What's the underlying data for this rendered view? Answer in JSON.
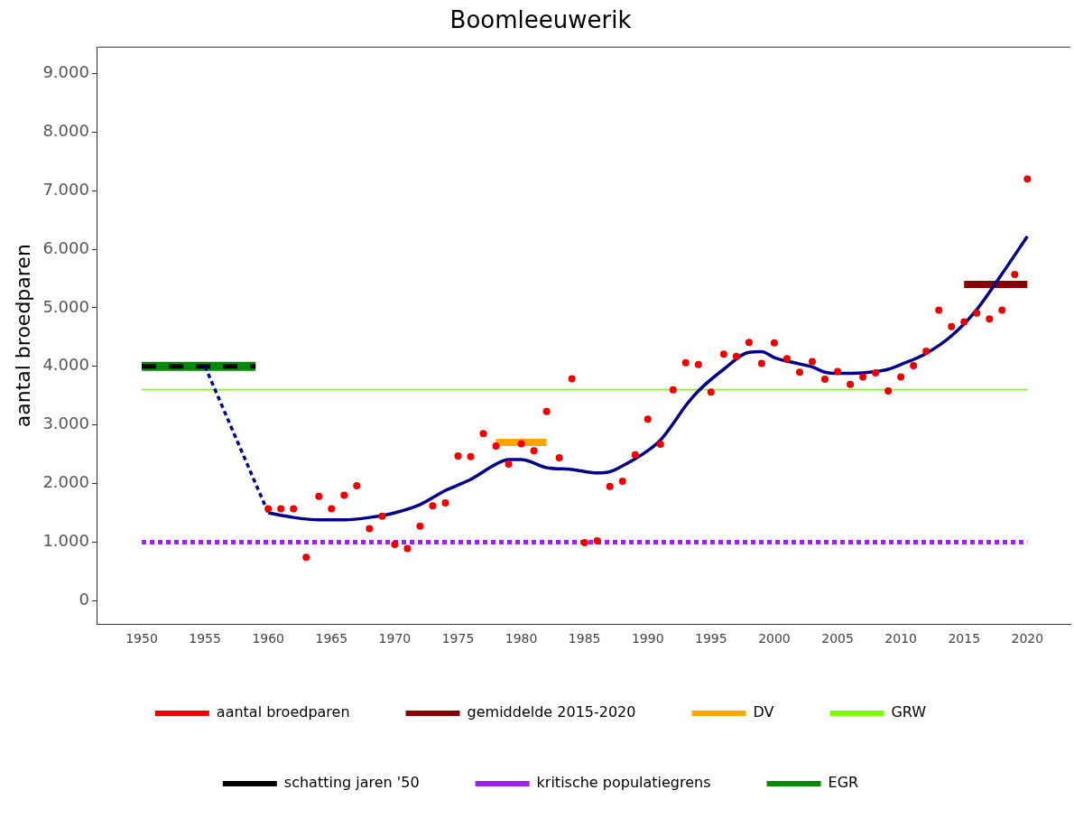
{
  "chart_data": {
    "type": "line",
    "title": "Boomleeuwerik",
    "ylabel": "aantal broedparen",
    "xlim": [
      1946.5,
      2023.4
    ],
    "ylim": [
      -400,
      9450
    ],
    "xticks": [
      1950,
      1955,
      1960,
      1965,
      1970,
      1975,
      1980,
      1985,
      1990,
      1995,
      2000,
      2005,
      2010,
      2015,
      2020
    ],
    "yticks": [
      {
        "value": 0,
        "label": "0"
      },
      {
        "value": 1000,
        "label": "1.000"
      },
      {
        "value": 2000,
        "label": "2.000"
      },
      {
        "value": 3000,
        "label": "3.000"
      },
      {
        "value": 4000,
        "label": "4.000"
      },
      {
        "value": 5000,
        "label": "5.000"
      },
      {
        "value": 6000,
        "label": "6.000"
      },
      {
        "value": 7000,
        "label": "7.000"
      },
      {
        "value": 8000,
        "label": "8.000"
      },
      {
        "value": 9000,
        "label": "9.000"
      }
    ],
    "grid": false,
    "legend": "bottom",
    "series": [
      {
        "type": "scatter",
        "name": "aantal broedparen",
        "color": "#ee0000",
        "marker": "circle",
        "x": [
          1960,
          1961,
          1962,
          1963,
          1964,
          1965,
          1966,
          1967,
          1968,
          1969,
          1970,
          1971,
          1972,
          1973,
          1974,
          1975,
          1976,
          1977,
          1978,
          1979,
          1980,
          1981,
          1982,
          1983,
          1984,
          1985,
          1986,
          1987,
          1988,
          1989,
          1990,
          1991,
          1992,
          1993,
          1994,
          1995,
          1996,
          1997,
          1998,
          1999,
          2000,
          2001,
          2002,
          2003,
          2004,
          2005,
          2006,
          2007,
          2008,
          2009,
          2010,
          2011,
          2012,
          2013,
          2014,
          2015,
          2016,
          2017,
          2018,
          2019,
          2020
        ],
        "values": [
          1570,
          1570,
          1570,
          740,
          1780,
          1570,
          1800,
          1960,
          1230,
          1440,
          960,
          890,
          1270,
          1620,
          1670,
          2470,
          2460,
          2850,
          2640,
          2330,
          2680,
          2560,
          3230,
          2440,
          3790,
          990,
          1020,
          1950,
          2040,
          2490,
          3100,
          2670,
          3600,
          4060,
          4030,
          3560,
          4210,
          4170,
          4410,
          4050,
          4400,
          4130,
          3900,
          4080,
          3780,
          3910,
          3690,
          3820,
          3890,
          3580,
          3820,
          4010,
          4260,
          4960,
          4680,
          4760,
          4910,
          4810,
          4960,
          5570,
          7200
        ]
      },
      {
        "name": "gemiddelde 2015-2020",
        "color": "#8b0000",
        "line_style": "solid",
        "x": [
          2015,
          2020
        ],
        "values": [
          5400,
          5400
        ]
      },
      {
        "name": "DV",
        "color": "#ffa500",
        "line_style": "solid",
        "x": [
          1978,
          1982
        ],
        "values": [
          2700,
          2700
        ]
      },
      {
        "name": "GRW",
        "color": "#7fff00",
        "line_style": "solid",
        "x": [
          1950,
          2020
        ],
        "values": [
          3600,
          3600
        ]
      },
      {
        "name": "schatting jaren '50",
        "color": "#000000",
        "line_style": "dashed",
        "x": [
          1950,
          1959
        ],
        "values": [
          4000,
          4000
        ]
      },
      {
        "name": "kritische populatiegrens",
        "color": "#a020f0",
        "line_style": "dotted",
        "x": [
          1950,
          2020
        ],
        "values": [
          1000,
          1000
        ]
      },
      {
        "name": "EGR",
        "color": "#008b00",
        "line_style": "solid",
        "x": [
          1950,
          1959
        ],
        "values": [
          4000,
          4000
        ]
      },
      {
        "color": "#00008b",
        "line_style": "dotted",
        "x": [
          1955,
          1960
        ],
        "values": [
          4000,
          1500
        ]
      },
      {
        "color": "#00008b",
        "line_style": "solid",
        "x": [
          1960,
          1962,
          1964,
          1966,
          1968,
          1970,
          1972,
          1974,
          1976,
          1978,
          1979,
          1980,
          1982,
          1984,
          1986,
          1987,
          1988,
          1990,
          1991,
          1992,
          1993,
          1994,
          1996,
          1998,
          1999,
          2000,
          2002,
          2003,
          2004,
          2005,
          2007,
          2008,
          2009,
          2010,
          2012,
          2014,
          2016,
          2018,
          2020
        ],
        "values": [
          1500,
          1420,
          1380,
          1380,
          1420,
          1500,
          1640,
          1880,
          2070,
          2330,
          2410,
          2410,
          2270,
          2240,
          2180,
          2200,
          2300,
          2560,
          2740,
          3020,
          3330,
          3580,
          3950,
          4240,
          4250,
          4150,
          4040,
          3990,
          3900,
          3880,
          3890,
          3910,
          3950,
          4030,
          4220,
          4520,
          4970,
          5580,
          6220
        ]
      }
    ]
  }
}
